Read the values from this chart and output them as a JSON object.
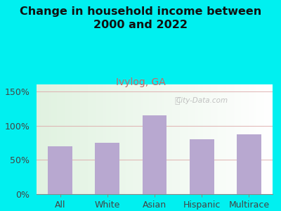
{
  "categories": [
    "All",
    "White",
    "Asian",
    "Hispanic",
    "Multirace"
  ],
  "values": [
    70,
    75,
    115,
    80,
    87
  ],
  "bar_color": "#b8a8d0",
  "title": "Change in household income between\n2000 and 2022",
  "subtitle": "Ivylog, GA",
  "subtitle_color": "#cc6666",
  "title_color": "#111111",
  "background_color": "#00f0f0",
  "ylim": [
    0,
    160
  ],
  "yticks": [
    0,
    50,
    100,
    150
  ],
  "ytick_labels": [
    "0%",
    "50%",
    "100%",
    "150%"
  ],
  "grid_color": "#ddaaaa",
  "watermark": "City-Data.com",
  "title_fontsize": 11.5,
  "subtitle_fontsize": 10,
  "tick_fontsize": 9,
  "bar_width": 0.52
}
